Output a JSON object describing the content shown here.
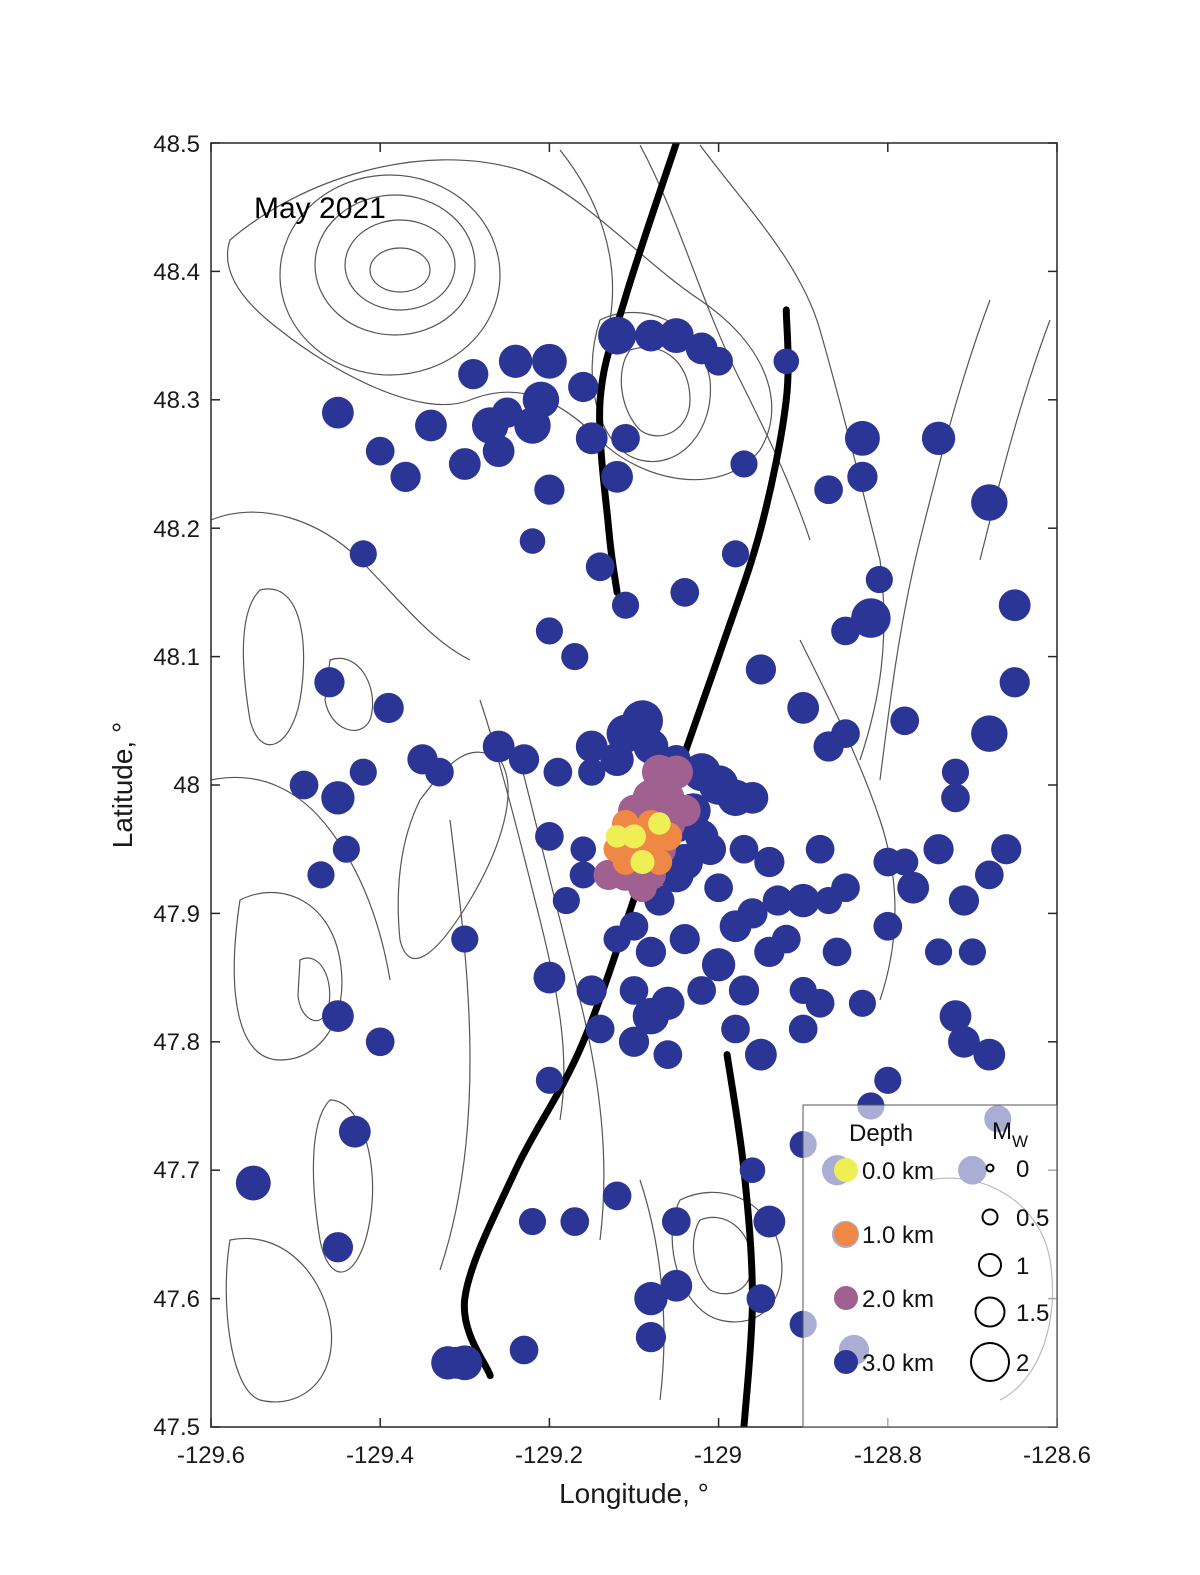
{
  "chart_data": {
    "type": "scatter",
    "panel_label": "May 2021",
    "xlabel": "Longitude, °",
    "ylabel": "Latitude, °",
    "xlim": [
      -129.6,
      -128.6
    ],
    "ylim": [
      47.5,
      48.5
    ],
    "x_ticks": [
      "-129.6",
      "-129.4",
      "-129.2",
      "-129",
      "-128.8",
      "-128.6"
    ],
    "y_ticks": [
      "48.5",
      "48.4",
      "48.3",
      "48.2",
      "48.1",
      "48",
      "47.9",
      "47.8",
      "47.7",
      "47.6",
      "47.5"
    ],
    "background": "bathymetry contour lines",
    "colors": {
      "depth_0": "#eeee55",
      "depth_1": "#ee8844",
      "depth_2": "#a06090",
      "depth_3": "#2b3595",
      "fault": "#000000",
      "contour": "#555555"
    },
    "legend": {
      "position": "bottom-right",
      "depth_title": "Depth",
      "depth_entries": [
        {
          "label": "0.0 km",
          "depth": 0
        },
        {
          "label": "1.0 km",
          "depth": 1
        },
        {
          "label": "2.0 km",
          "depth": 2
        },
        {
          "label": "3.0 km",
          "depth": 3
        }
      ],
      "mag_title": "M",
      "mag_subscript": "W",
      "mag_entries": [
        {
          "label": "0",
          "mw": 0
        },
        {
          "label": "0.5",
          "mw": 0.5
        },
        {
          "label": "1",
          "mw": 1
        },
        {
          "label": "1.5",
          "mw": 1.5
        },
        {
          "label": "2",
          "mw": 2
        }
      ]
    },
    "fault_traces": [
      [
        [
          -129.05,
          48.5
        ],
        [
          -129.11,
          48.38
        ],
        [
          -129.14,
          48.3
        ],
        [
          -129.13,
          48.2
        ],
        [
          -129.12,
          48.15
        ]
      ],
      [
        [
          -128.92,
          48.37
        ],
        [
          -128.92,
          48.3
        ],
        [
          -128.95,
          48.2
        ],
        [
          -129.0,
          48.1
        ],
        [
          -129.08,
          47.95
        ],
        [
          -129.16,
          47.8
        ],
        [
          -129.24,
          47.7
        ],
        [
          -129.3,
          47.6
        ],
        [
          -129.27,
          47.54
        ]
      ],
      [
        [
          -128.99,
          47.79
        ],
        [
          -128.97,
          47.7
        ],
        [
          -128.96,
          47.6
        ],
        [
          -128.97,
          47.5
        ]
      ]
    ],
    "series": [
      {
        "depth_km": 3,
        "points": [
          [
            -129.12,
            48.35,
            2.0
          ],
          [
            -129.08,
            48.35,
            1.6
          ],
          [
            -129.05,
            48.35,
            1.8
          ],
          [
            -129.02,
            48.34,
            1.6
          ],
          [
            -129.0,
            48.33,
            1.4
          ],
          [
            -129.2,
            48.33,
            1.8
          ],
          [
            -129.24,
            48.33,
            1.7
          ],
          [
            -129.29,
            48.32,
            1.5
          ],
          [
            -129.16,
            48.31,
            1.5
          ],
          [
            -129.21,
            48.3,
            1.9
          ],
          [
            -129.25,
            48.29,
            1.5
          ],
          [
            -129.34,
            48.28,
            1.6
          ],
          [
            -129.27,
            48.28,
            1.9
          ],
          [
            -129.22,
            48.28,
            1.9
          ],
          [
            -129.15,
            48.27,
            1.6
          ],
          [
            -129.11,
            48.27,
            1.4
          ],
          [
            -129.26,
            48.26,
            1.6
          ],
          [
            -129.12,
            48.24,
            1.6
          ],
          [
            -129.2,
            48.23,
            1.5
          ],
          [
            -129.45,
            48.29,
            1.6
          ],
          [
            -129.4,
            48.26,
            1.4
          ],
          [
            -129.37,
            48.24,
            1.5
          ],
          [
            -129.3,
            48.25,
            1.6
          ],
          [
            -128.83,
            48.27,
            1.8
          ],
          [
            -128.74,
            48.27,
            1.7
          ],
          [
            -128.83,
            48.24,
            1.5
          ],
          [
            -128.87,
            48.23,
            1.4
          ],
          [
            -128.97,
            48.25,
            1.3
          ],
          [
            -128.92,
            48.33,
            1.2
          ],
          [
            -128.68,
            48.22,
            1.9
          ],
          [
            -129.42,
            48.18,
            1.3
          ],
          [
            -129.14,
            48.17,
            1.4
          ],
          [
            -129.22,
            48.19,
            1.2
          ],
          [
            -129.11,
            48.14,
            1.3
          ],
          [
            -129.04,
            48.15,
            1.4
          ],
          [
            -128.98,
            48.18,
            1.3
          ],
          [
            -128.82,
            48.13,
            2.1
          ],
          [
            -128.81,
            48.16,
            1.3
          ],
          [
            -128.85,
            48.12,
            1.4
          ],
          [
            -128.65,
            48.14,
            1.6
          ],
          [
            -129.46,
            48.08,
            1.5
          ],
          [
            -129.39,
            48.06,
            1.5
          ],
          [
            -129.2,
            48.12,
            1.3
          ],
          [
            -129.17,
            48.1,
            1.3
          ],
          [
            -129.09,
            48.05,
            2.2
          ],
          [
            -129.11,
            48.04,
            2.0
          ],
          [
            -129.08,
            48.03,
            1.8
          ],
          [
            -129.12,
            48.02,
            1.7
          ],
          [
            -129.15,
            48.03,
            1.6
          ],
          [
            -128.95,
            48.09,
            1.5
          ],
          [
            -128.9,
            48.06,
            1.6
          ],
          [
            -128.85,
            48.04,
            1.4
          ],
          [
            -128.78,
            48.05,
            1.4
          ],
          [
            -128.65,
            48.08,
            1.5
          ],
          [
            -128.68,
            48.04,
            1.9
          ],
          [
            -129.49,
            48.0,
            1.4
          ],
          [
            -129.45,
            47.99,
            1.7
          ],
          [
            -129.42,
            48.01,
            1.3
          ],
          [
            -129.35,
            48.02,
            1.5
          ],
          [
            -129.33,
            48.01,
            1.4
          ],
          [
            -129.26,
            48.03,
            1.6
          ],
          [
            -129.23,
            48.02,
            1.5
          ],
          [
            -129.19,
            48.01,
            1.4
          ],
          [
            -129.15,
            48.01,
            1.3
          ],
          [
            -129.05,
            48.02,
            1.4
          ],
          [
            -129.02,
            48.01,
            2.0
          ],
          [
            -129.0,
            48.0,
            2.1
          ],
          [
            -128.98,
            47.99,
            1.9
          ],
          [
            -128.96,
            47.99,
            1.6
          ],
          [
            -128.87,
            48.03,
            1.5
          ],
          [
            -128.72,
            47.99,
            1.4
          ],
          [
            -128.72,
            48.01,
            1.3
          ],
          [
            -129.03,
            47.98,
            1.8
          ],
          [
            -129.05,
            47.97,
            2.0
          ],
          [
            -129.02,
            47.96,
            1.7
          ],
          [
            -129.01,
            47.95,
            1.6
          ],
          [
            -129.04,
            47.94,
            1.9
          ],
          [
            -129.05,
            47.93,
            1.8
          ],
          [
            -128.97,
            47.95,
            1.4
          ],
          [
            -128.94,
            47.94,
            1.5
          ],
          [
            -128.88,
            47.95,
            1.4
          ],
          [
            -128.8,
            47.94,
            1.4
          ],
          [
            -128.78,
            47.94,
            1.3
          ],
          [
            -128.74,
            47.95,
            1.5
          ],
          [
            -128.66,
            47.95,
            1.5
          ],
          [
            -128.68,
            47.93,
            1.4
          ],
          [
            -128.71,
            47.91,
            1.5
          ],
          [
            -128.77,
            47.92,
            1.6
          ],
          [
            -128.85,
            47.92,
            1.4
          ],
          [
            -128.87,
            47.91,
            1.3
          ],
          [
            -128.9,
            47.91,
            1.7
          ],
          [
            -128.93,
            47.91,
            1.5
          ],
          [
            -128.96,
            47.9,
            1.5
          ],
          [
            -129.0,
            47.92,
            1.4
          ],
          [
            -129.07,
            47.91,
            1.5
          ],
          [
            -129.1,
            47.89,
            1.4
          ],
          [
            -129.16,
            47.93,
            1.3
          ],
          [
            -129.18,
            47.91,
            1.3
          ],
          [
            -129.47,
            47.93,
            1.3
          ],
          [
            -129.44,
            47.95,
            1.3
          ],
          [
            -129.2,
            47.96,
            1.4
          ],
          [
            -129.16,
            47.95,
            1.2
          ],
          [
            -129.3,
            47.88,
            1.3
          ],
          [
            -129.12,
            47.88,
            1.3
          ],
          [
            -129.08,
            47.87,
            1.5
          ],
          [
            -129.04,
            47.88,
            1.5
          ],
          [
            -129.0,
            47.86,
            1.7
          ],
          [
            -128.98,
            47.89,
            1.6
          ],
          [
            -128.94,
            47.87,
            1.5
          ],
          [
            -128.92,
            47.88,
            1.4
          ],
          [
            -128.86,
            47.87,
            1.4
          ],
          [
            -128.8,
            47.89,
            1.4
          ],
          [
            -128.74,
            47.87,
            1.3
          ],
          [
            -128.7,
            47.87,
            1.3
          ],
          [
            -129.2,
            47.85,
            1.6
          ],
          [
            -129.15,
            47.84,
            1.5
          ],
          [
            -129.1,
            47.84,
            1.4
          ],
          [
            -129.06,
            47.83,
            1.7
          ],
          [
            -129.02,
            47.84,
            1.4
          ],
          [
            -128.97,
            47.84,
            1.5
          ],
          [
            -128.9,
            47.84,
            1.3
          ],
          [
            -128.88,
            47.83,
            1.4
          ],
          [
            -128.83,
            47.83,
            1.3
          ],
          [
            -128.72,
            47.82,
            1.6
          ],
          [
            -129.45,
            47.82,
            1.6
          ],
          [
            -129.4,
            47.8,
            1.4
          ],
          [
            -129.14,
            47.81,
            1.4
          ],
          [
            -129.1,
            47.8,
            1.5
          ],
          [
            -129.08,
            47.82,
            1.9
          ],
          [
            -129.06,
            47.79,
            1.4
          ],
          [
            -128.98,
            47.81,
            1.4
          ],
          [
            -128.95,
            47.79,
            1.6
          ],
          [
            -128.9,
            47.81,
            1.4
          ],
          [
            -128.71,
            47.8,
            1.6
          ],
          [
            -128.68,
            47.79,
            1.6
          ],
          [
            -129.2,
            47.77,
            1.3
          ],
          [
            -128.8,
            47.77,
            1.3
          ],
          [
            -128.82,
            47.75,
            1.3
          ],
          [
            -129.43,
            47.73,
            1.6
          ],
          [
            -128.9,
            47.72,
            1.3
          ],
          [
            -128.86,
            47.7,
            1.5
          ],
          [
            -128.7,
            47.7,
            1.4
          ],
          [
            -128.67,
            47.74,
            1.3
          ],
          [
            -128.96,
            47.7,
            1.2
          ],
          [
            -129.55,
            47.69,
            1.8
          ],
          [
            -129.12,
            47.68,
            1.4
          ],
          [
            -129.17,
            47.66,
            1.4
          ],
          [
            -129.22,
            47.66,
            1.3
          ],
          [
            -129.05,
            47.66,
            1.4
          ],
          [
            -128.94,
            47.66,
            1.6
          ],
          [
            -128.85,
            47.65,
            1.3
          ],
          [
            -129.45,
            47.64,
            1.5
          ],
          [
            -129.08,
            47.6,
            1.7
          ],
          [
            -129.05,
            47.61,
            1.6
          ],
          [
            -128.95,
            47.6,
            1.4
          ],
          [
            -128.84,
            47.56,
            1.5
          ],
          [
            -129.08,
            47.57,
            1.5
          ],
          [
            -128.9,
            47.58,
            1.3
          ],
          [
            -129.23,
            47.56,
            1.4
          ],
          [
            -129.32,
            47.55,
            1.7
          ],
          [
            -129.3,
            47.55,
            1.8
          ],
          [
            -129.31,
            47.55,
            1.6
          ]
        ]
      },
      {
        "depth_km": 2,
        "points": [
          [
            -129.07,
            48.01,
            1.8
          ],
          [
            -129.05,
            48.01,
            1.7
          ],
          [
            -129.08,
            47.99,
            1.9
          ],
          [
            -129.06,
            47.99,
            1.7
          ],
          [
            -129.09,
            47.97,
            1.6
          ],
          [
            -129.06,
            47.97,
            1.8
          ],
          [
            -129.1,
            47.95,
            1.5
          ],
          [
            -129.07,
            47.95,
            1.7
          ],
          [
            -129.11,
            47.93,
            1.6
          ],
          [
            -129.08,
            47.93,
            1.5
          ],
          [
            -129.13,
            47.93,
            1.5
          ],
          [
            -129.09,
            47.92,
            1.4
          ],
          [
            -129.1,
            47.98,
            1.6
          ],
          [
            -129.04,
            47.98,
            1.6
          ]
        ]
      },
      {
        "depth_km": 1,
        "points": [
          [
            -129.11,
            47.97,
            1.3
          ],
          [
            -129.09,
            47.96,
            1.4
          ],
          [
            -129.08,
            47.95,
            1.3
          ],
          [
            -129.1,
            47.95,
            1.4
          ],
          [
            -129.12,
            47.95,
            1.3
          ],
          [
            -129.11,
            47.94,
            1.2
          ],
          [
            -129.08,
            47.97,
            1.3
          ],
          [
            -129.06,
            47.96,
            1.4
          ],
          [
            -129.07,
            47.94,
            1.2
          ]
        ]
      },
      {
        "depth_km": 0,
        "points": [
          [
            -129.1,
            47.96,
            1.1
          ],
          [
            -129.09,
            47.94,
            1.1
          ],
          [
            -129.07,
            47.97,
            1.0
          ],
          [
            -129.12,
            47.96,
            1.0
          ]
        ]
      }
    ]
  }
}
